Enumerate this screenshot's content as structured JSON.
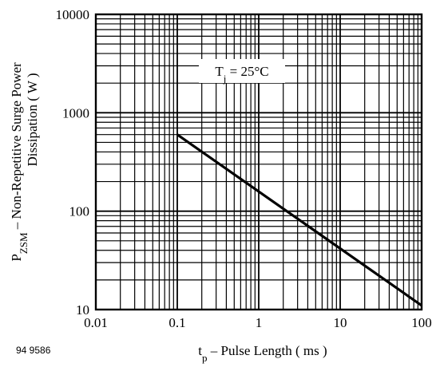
{
  "figure_id": "94 9586",
  "chart_data": {
    "type": "line",
    "xscale": "log",
    "yscale": "log",
    "xlim": [
      0.01,
      100
    ],
    "ylim": [
      10,
      10000
    ],
    "grid": true,
    "xticks": [
      "0.01",
      "0.1",
      "1",
      "10",
      "100"
    ],
    "yticks": [
      "10",
      "100",
      "1000",
      "10000"
    ],
    "xlabel": {
      "main": "t",
      "sub": "p",
      "rest": " – Pulse Length ( ms )"
    },
    "ylabel": {
      "line1_main": "P",
      "line1_sub": "ZSM",
      "line1_rest": " – Non-Repetitive Surge Power",
      "line2": "Dissipation ( W )"
    },
    "annotation": {
      "main": "T",
      "sub": "j",
      "rest": " = 25°C"
    },
    "series": [
      {
        "x": [
          0.1,
          100
        ],
        "y": [
          600,
          11
        ]
      }
    ]
  }
}
